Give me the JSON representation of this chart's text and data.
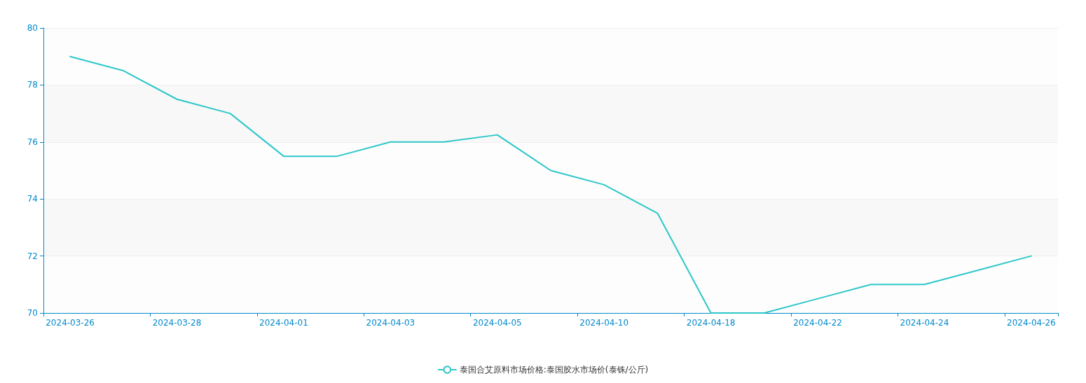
{
  "chart_data": {
    "type": "line",
    "categories": [
      "2024-03-26",
      null,
      "2024-03-28",
      null,
      "2024-04-01",
      null,
      "2024-04-03",
      null,
      "2024-04-05",
      null,
      "2024-04-10",
      null,
      "2024-04-18",
      null,
      "2024-04-22",
      null,
      "2024-04-24",
      null,
      "2024-04-26"
    ],
    "series": [
      {
        "name": "泰国合艾原料市场价格:泰国胶水市场价(泰铢/公斤)",
        "color": "#2ec7c9",
        "values": [
          79,
          78.5,
          77.5,
          77,
          75.5,
          75.5,
          76,
          76,
          76.25,
          75,
          74.5,
          73.5,
          70,
          70,
          70.5,
          71,
          71,
          71.5,
          72
        ]
      }
    ],
    "ylim": [
      70,
      80
    ],
    "yticks": [
      70,
      72,
      74,
      76,
      78,
      80
    ],
    "grid": "y",
    "legend": "bottom",
    "marker": "none",
    "line_style": "solid"
  }
}
